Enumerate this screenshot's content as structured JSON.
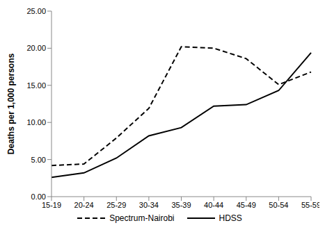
{
  "chart_data": {
    "type": "line",
    "y_label": "Deaths per 1,000 persons",
    "categories": [
      "15-19",
      "20-24",
      "25-29",
      "30-34",
      "35-39",
      "40-44",
      "45-49",
      "50-54",
      "55-59"
    ],
    "series": [
      {
        "name": "Spectrum-Nairobi",
        "color": "#000000",
        "line_style": "dashed",
        "values": [
          4.2,
          4.4,
          7.9,
          11.9,
          20.2,
          20.0,
          18.6,
          15.1,
          16.8
        ]
      },
      {
        "name": "HDSS",
        "color": "#000000",
        "line_style": "solid",
        "values": [
          2.6,
          3.2,
          5.2,
          8.2,
          9.3,
          12.2,
          12.4,
          14.3,
          19.4
        ]
      }
    ],
    "ylim": [
      0,
      25
    ],
    "yticks": [
      {
        "value": 0,
        "label": "0.00"
      },
      {
        "value": 5,
        "label": "5.00"
      },
      {
        "value": 10,
        "label": "10.00"
      },
      {
        "value": 15,
        "label": "15.00"
      },
      {
        "value": 20,
        "label": "20.00"
      },
      {
        "value": 25,
        "label": "25.00"
      }
    ],
    "grid": false,
    "legend": "bottom"
  }
}
